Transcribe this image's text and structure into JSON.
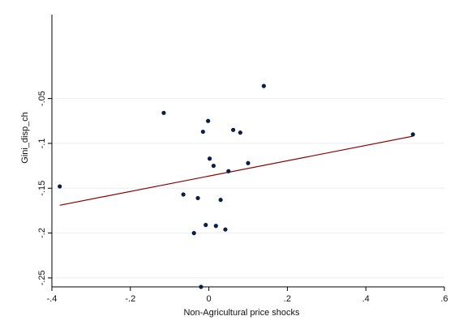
{
  "chart_data": {
    "type": "scatter",
    "title": "",
    "xlabel": "Non-Agricultural price shocks",
    "ylabel": "Gini_disp_ch",
    "xlim": [
      -0.4,
      0.6
    ],
    "ylim": [
      -0.26,
      0.04
    ],
    "x_ticks": [
      -0.4,
      -0.2,
      0,
      0.2,
      0.4,
      0.6
    ],
    "x_tick_labels": [
      "-.4",
      "-.2",
      "0",
      ".2",
      ".4",
      ".6"
    ],
    "y_ticks": [
      -0.25,
      -0.2,
      -0.15,
      -0.1,
      -0.05
    ],
    "y_tick_labels": [
      "-.25",
      "-.2",
      "-.15",
      "-.1",
      "-.05"
    ],
    "grid": true,
    "points": [
      {
        "x": 0.14,
        "y": -0.036
      },
      {
        "x": -0.115,
        "y": -0.066
      },
      {
        "x": -0.002,
        "y": -0.075
      },
      {
        "x": -0.015,
        "y": -0.087
      },
      {
        "x": 0.062,
        "y": -0.085
      },
      {
        "x": 0.08,
        "y": -0.088
      },
      {
        "x": 0.52,
        "y": -0.09
      },
      {
        "x": 0.002,
        "y": -0.117
      },
      {
        "x": 0.012,
        "y": -0.125
      },
      {
        "x": 0.1,
        "y": -0.122
      },
      {
        "x": 0.05,
        "y": -0.131
      },
      {
        "x": -0.38,
        "y": -0.148
      },
      {
        "x": -0.065,
        "y": -0.157
      },
      {
        "x": -0.028,
        "y": -0.161
      },
      {
        "x": 0.03,
        "y": -0.163
      },
      {
        "x": -0.008,
        "y": -0.191
      },
      {
        "x": 0.018,
        "y": -0.192
      },
      {
        "x": 0.042,
        "y": -0.196
      },
      {
        "x": -0.038,
        "y": -0.2
      },
      {
        "x": -0.02,
        "y": -0.26
      }
    ],
    "fit_line": {
      "x": [
        -0.38,
        0.52
      ],
      "y": [
        -0.169,
        -0.092
      ]
    },
    "colors": {
      "points": "#0a1f44",
      "fit_line": "#8b0000",
      "grid": "#e8eef2",
      "axis": "#000000",
      "background": "#ffffff"
    }
  }
}
